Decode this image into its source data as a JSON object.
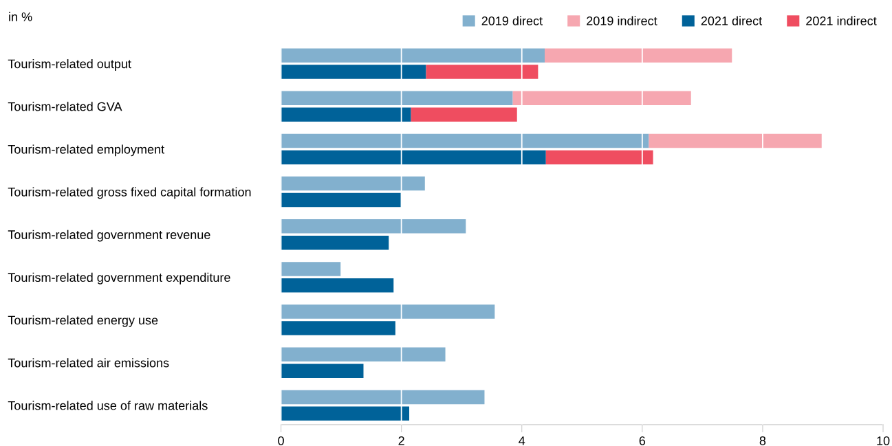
{
  "chart_data": {
    "type": "bar",
    "orientation": "horizontal",
    "annotations": [
      "in %"
    ],
    "categories": [
      "Tourism-related output",
      "Tourism-related GVA",
      "Tourism-related employment",
      "Tourism-related gross fixed capital formation",
      "Tourism-related government revenue",
      "Tourism-related government expenditure",
      "Tourism-related energy use",
      "Tourism-related air emissions",
      "Tourism-related use of raw materials"
    ],
    "series": [
      {
        "name": "2019 direct",
        "color": "#82b0ce",
        "base": [
          0,
          0,
          0,
          0,
          0,
          0,
          0,
          0,
          0
        ],
        "values": [
          4.38,
          3.85,
          6.11,
          2.39,
          3.07,
          0.99,
          3.55,
          2.73,
          3.38
        ]
      },
      {
        "name": "2019 indirect",
        "color": "#f6a7b0",
        "base": [
          4.38,
          3.85,
          6.11,
          null,
          null,
          null,
          null,
          null,
          null
        ],
        "values": [
          3.11,
          2.96,
          2.87,
          null,
          null,
          null,
          null,
          null,
          null
        ]
      },
      {
        "name": "2021 direct",
        "color": "#006299",
        "base": [
          0,
          0,
          0,
          0,
          0,
          0,
          0,
          0,
          0
        ],
        "values": [
          2.41,
          2.16,
          4.4,
          1.99,
          1.79,
          1.87,
          1.9,
          1.37,
          2.13
        ]
      },
      {
        "name": "2021 indirect",
        "color": "#ef4d60",
        "base": [
          2.41,
          2.16,
          4.4,
          null,
          null,
          null,
          null,
          null,
          null
        ],
        "values": [
          1.86,
          1.76,
          1.78,
          null,
          null,
          null,
          null,
          null,
          null
        ]
      }
    ],
    "xlim": [
      0,
      10
    ],
    "xticks": [
      0,
      2,
      4,
      6,
      8,
      10
    ],
    "grid": "x",
    "legend": "top right"
  }
}
